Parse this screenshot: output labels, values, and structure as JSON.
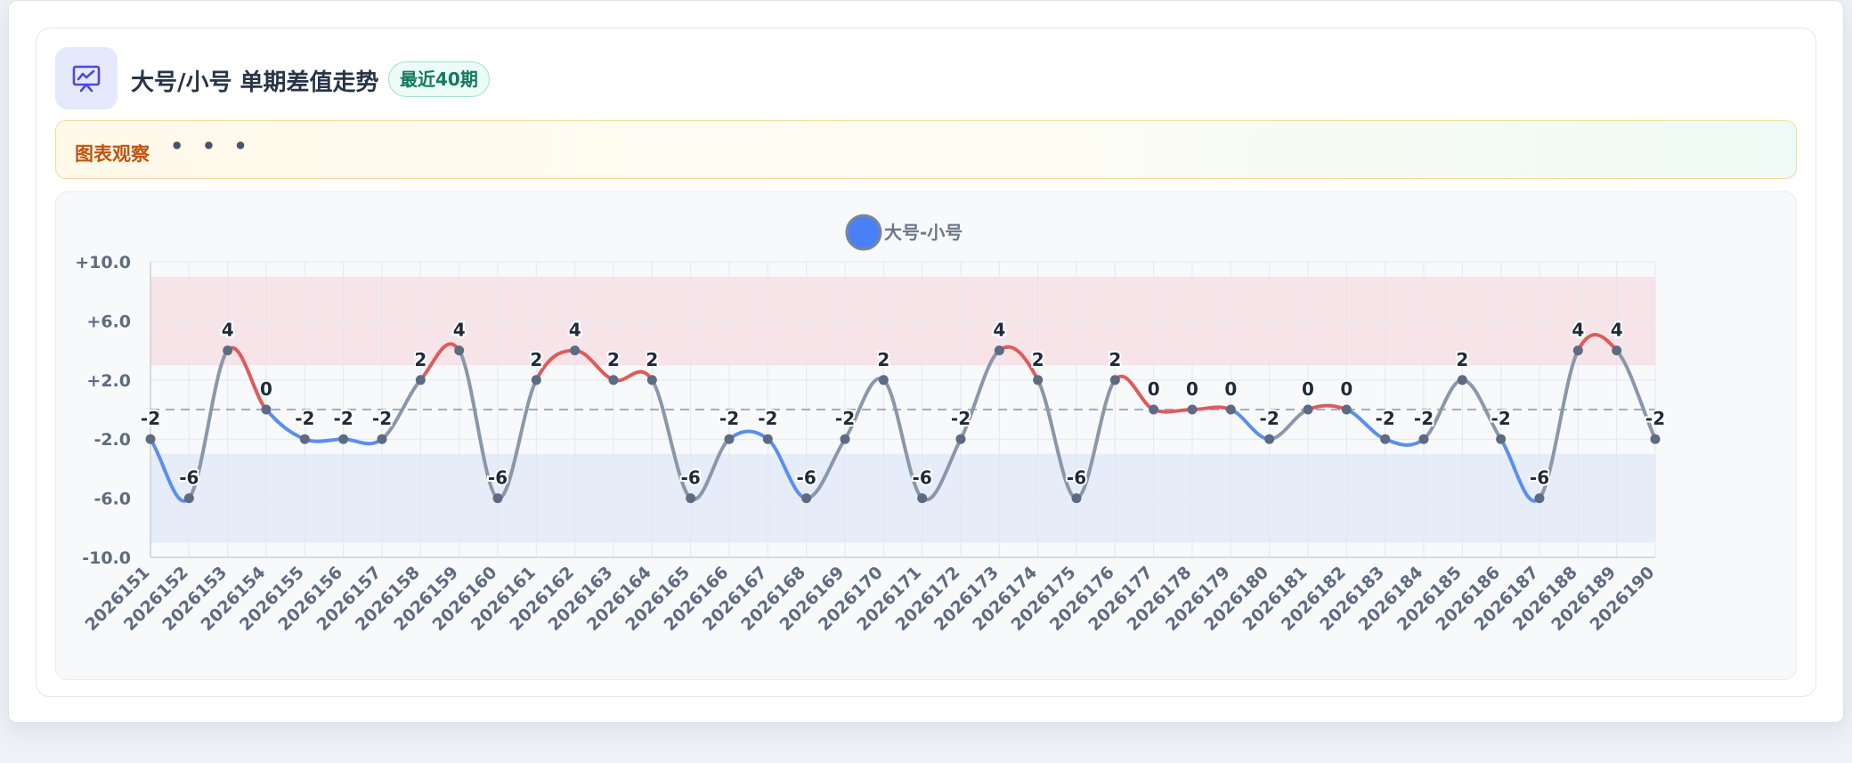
{
  "header": {
    "icon": "chart-presentation-icon",
    "title": "大号/小号 单期差值走势",
    "badge": "最近40期"
  },
  "observation": {
    "title": "图表观察",
    "dots": "• • •"
  },
  "colors": {
    "positive": "#e05a5a",
    "negative": "#5a8ff0",
    "neutral": "#8a97ab",
    "point": "#5d6b82",
    "band_high": "#f6e4e8",
    "band_low": "#e6edf9",
    "legend_dot": "#4a80f5"
  },
  "chart_data": {
    "type": "line",
    "title": "",
    "xlabel": "",
    "ylabel": "",
    "legend": "top-center",
    "grid": true,
    "ylim": [
      -10,
      10
    ],
    "yticks": [
      "+10.0",
      "+6.0",
      "+2.0",
      "-2.0",
      "-6.0",
      "-10.0"
    ],
    "ytick_values": [
      10,
      6,
      2,
      -2,
      -6,
      -10
    ],
    "bands": [
      {
        "from": 3,
        "to": 9,
        "color": "#f6e4e8"
      },
      {
        "from": -9,
        "to": -3,
        "color": "#e6edf9"
      }
    ],
    "reference_line": 0,
    "categories": [
      "2026151",
      "2026152",
      "2026153",
      "2026154",
      "2026155",
      "2026156",
      "2026157",
      "2026158",
      "2026159",
      "2026160",
      "2026161",
      "2026162",
      "2026163",
      "2026164",
      "2026165",
      "2026166",
      "2026167",
      "2026168",
      "2026169",
      "2026170",
      "2026171",
      "2026172",
      "2026173",
      "2026174",
      "2026175",
      "2026176",
      "2026177",
      "2026178",
      "2026179",
      "2026180",
      "2026181",
      "2026182",
      "2026183",
      "2026184",
      "2026185",
      "2026186",
      "2026187",
      "2026188",
      "2026189",
      "2026190"
    ],
    "series": [
      {
        "name": "大号-小号",
        "values": [
          -2,
          -6,
          4,
          0,
          -2,
          -2,
          -2,
          2,
          4,
          -6,
          2,
          4,
          2,
          2,
          -6,
          -2,
          -2,
          -6,
          -2,
          2,
          -6,
          -2,
          4,
          2,
          -6,
          2,
          0,
          0,
          0,
          -2,
          0,
          0,
          -2,
          -2,
          2,
          -2,
          -6,
          4,
          4,
          -2
        ]
      }
    ]
  }
}
